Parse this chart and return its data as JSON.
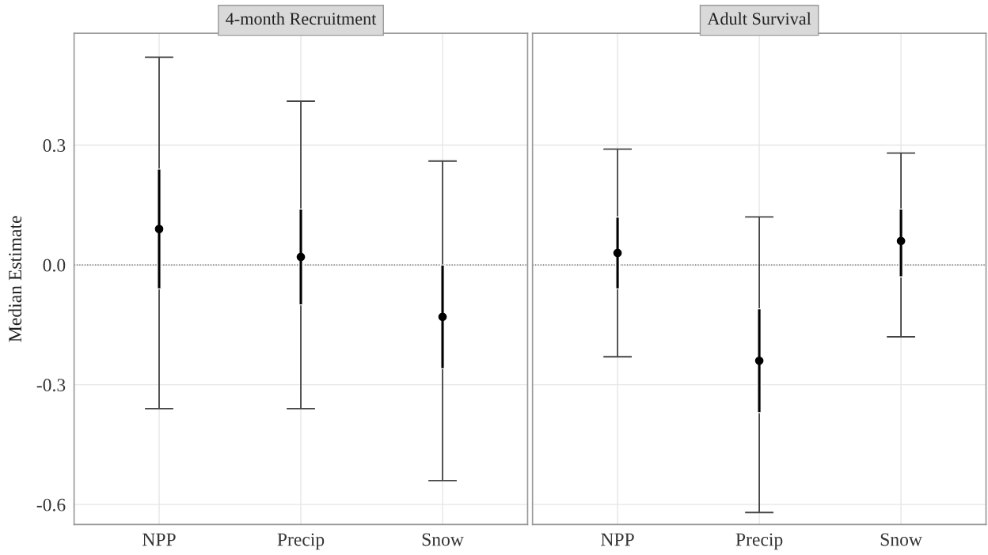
{
  "chart_data": [
    {
      "type": "scatter",
      "title": "4-month Recruitment",
      "ylabel": "Median Estimate",
      "categories": [
        "NPP",
        "Precip",
        "Snow"
      ],
      "series": [
        {
          "type": "bar",
          "color": "#000000",
          "base": [
            -0.06,
            -0.1,
            -0.26
          ],
          "values": [
            0.3,
            0.24,
            0.26
          ]
        },
        {
          "color": "#000000",
          "values": [
            0.09,
            0.02,
            -0.13
          ],
          "errors": [
            [
              -0.36,
              0.52
            ],
            [
              -0.36,
              0.41
            ],
            [
              -0.54,
              0.26
            ]
          ],
          "marker": "circle"
        }
      ],
      "ylim": [
        -0.65,
        0.58
      ],
      "yticks": [
        -0.6,
        -0.3,
        {
          "value": 0.0,
          "label": "0.0"
        },
        0.3
      ],
      "ref_lines": [
        {
          "axis": "y",
          "value": 0,
          "line_style": "dotted",
          "color": "#555555"
        }
      ],
      "grid": true
    },
    {
      "type": "scatter",
      "title": "Adult Survival",
      "categories": [
        "NPP",
        "Precip",
        "Snow"
      ],
      "series": [
        {
          "type": "bar",
          "color": "#000000",
          "base": [
            -0.06,
            -0.37,
            -0.03
          ],
          "values": [
            0.18,
            0.26,
            0.17
          ]
        },
        {
          "color": "#000000",
          "values": [
            0.03,
            -0.24,
            0.06
          ],
          "errors": [
            [
              -0.23,
              0.29
            ],
            [
              -0.62,
              0.12
            ],
            [
              -0.18,
              0.28
            ]
          ],
          "marker": "circle"
        }
      ],
      "ylim": [
        -0.65,
        0.58
      ],
      "yticks": [
        -0.6,
        -0.3,
        0.0,
        0.3
      ],
      "ref_lines": [
        {
          "axis": "y",
          "value": 0,
          "line_style": "dotted",
          "color": "#555555"
        }
      ],
      "grid": true,
      "tick_labels": "x"
    }
  ]
}
